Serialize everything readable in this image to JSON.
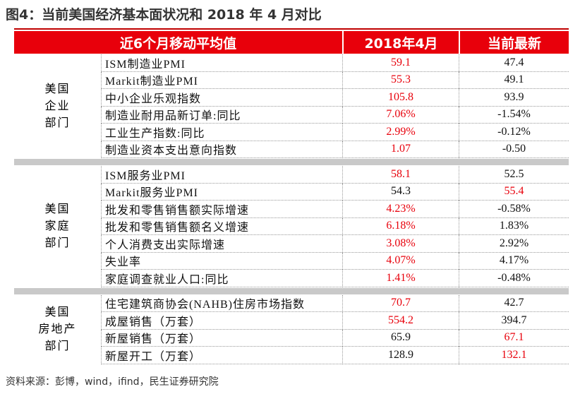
{
  "title": "图4：当前美国经济基本面状况和 2018 年 4 月对比",
  "table": {
    "header": [
      "近6个月移动平均值",
      "2018年4月",
      "当前最新"
    ],
    "highlight_color": "#e8000b",
    "sections": [
      {
        "label": [
          "美国",
          "企业",
          "部门"
        ],
        "rows": [
          {
            "name": "ISM制造业PMI",
            "cells": [
              "59.1",
              "47.4"
            ],
            "red": [
              true,
              false
            ]
          },
          {
            "name": "Markit制造业PMI",
            "cells": [
              "55.3",
              "49.1"
            ],
            "red": [
              true,
              false
            ]
          },
          {
            "name": "中小企业乐观指数",
            "cells": [
              "105.8",
              "93.9"
            ],
            "red": [
              true,
              false
            ]
          },
          {
            "name": "制造业耐用品新订单:同比",
            "cells": [
              "7.06%",
              "-1.54%"
            ],
            "red": [
              true,
              false
            ]
          },
          {
            "name": "工业生产指数:同比",
            "cells": [
              "2.99%",
              "-0.12%"
            ],
            "red": [
              true,
              false
            ]
          },
          {
            "name": "制造业资本支出意向指数",
            "cells": [
              "1.07",
              "-0.50"
            ],
            "red": [
              true,
              false
            ]
          }
        ]
      },
      {
        "label": [
          "美国",
          "家庭",
          "部门"
        ],
        "rows": [
          {
            "name": "ISM服务业PMI",
            "cells": [
              "58.1",
              "52.5"
            ],
            "red": [
              true,
              false
            ]
          },
          {
            "name": "Markit服务业PMI",
            "cells": [
              "54.3",
              "55.4"
            ],
            "red": [
              false,
              true
            ]
          },
          {
            "name": "批发和零售销售额实际增速",
            "cells": [
              "4.23%",
              "-0.58%"
            ],
            "red": [
              true,
              false
            ]
          },
          {
            "name": "批发和零售销售额名义增速",
            "cells": [
              "6.18%",
              "1.83%"
            ],
            "red": [
              true,
              false
            ]
          },
          {
            "name": "个人消费支出实际增速",
            "cells": [
              "3.08%",
              "2.92%"
            ],
            "red": [
              true,
              false
            ]
          },
          {
            "name": "失业率",
            "cells": [
              "4.07%",
              "4.17%"
            ],
            "red": [
              true,
              false
            ]
          },
          {
            "name": "家庭调查就业人口:同比",
            "cells": [
              "1.41%",
              "-0.48%"
            ],
            "red": [
              true,
              false
            ]
          }
        ]
      },
      {
        "label": [
          "美国",
          "房地产",
          "部门"
        ],
        "rows": [
          {
            "name": "住宅建筑商协会(NAHB)住房市场指数",
            "cells": [
              "70.7",
              "42.7"
            ],
            "red": [
              true,
              false
            ]
          },
          {
            "name": "成屋销售（万套）",
            "cells": [
              "554.2",
              "394.7"
            ],
            "red": [
              true,
              false
            ]
          },
          {
            "name": "新屋销售（万套）",
            "cells": [
              "65.9",
              "67.1"
            ],
            "red": [
              false,
              true
            ]
          },
          {
            "name": "新屋开工（万套）",
            "cells": [
              "128.9",
              "132.1"
            ],
            "red": [
              false,
              true
            ]
          }
        ]
      }
    ]
  },
  "source": "资料来源：彭博，wind，ifind，民生证券研究院"
}
